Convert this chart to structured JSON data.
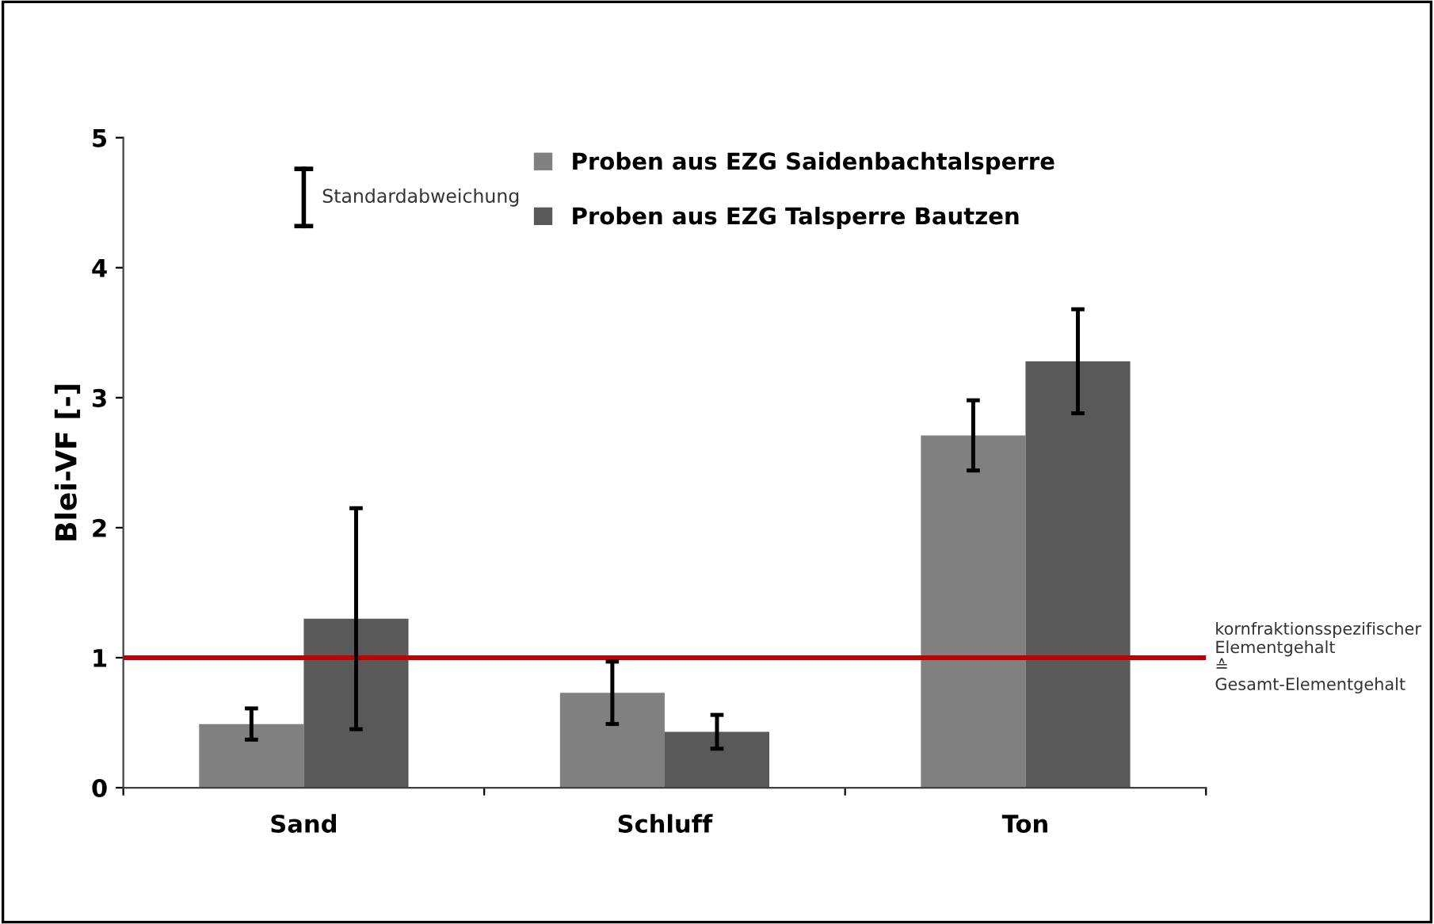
{
  "chart_data": {
    "type": "bar",
    "ylabel": "Blei-VF [-]",
    "categories": [
      "Sand",
      "Schluff",
      "Ton"
    ],
    "series": [
      {
        "name": "Proben aus EZG Saidenbachtalsperre",
        "color": "#808080",
        "values": [
          0.49,
          0.73,
          2.71
        ],
        "errors": [
          0.12,
          0.24,
          0.27
        ]
      },
      {
        "name": "Proben aus EZG Talsperre Bautzen",
        "color": "#595959",
        "values": [
          1.3,
          0.43,
          3.28
        ],
        "errors": [
          0.85,
          0.13,
          0.4
        ]
      }
    ],
    "ylim": [
      0,
      5
    ],
    "yticks": [
      0,
      1,
      2,
      3,
      4,
      5
    ],
    "grid": false,
    "legend": "top right",
    "ref_lines": [
      {
        "axis": "y",
        "value": 1,
        "label": "kornfraktionsspezifischer\nElementgehalt\n≙\nGesamt-Elementgehalt",
        "color": "#c00000"
      }
    ],
    "annotations": [
      "Standardabweichung"
    ]
  }
}
